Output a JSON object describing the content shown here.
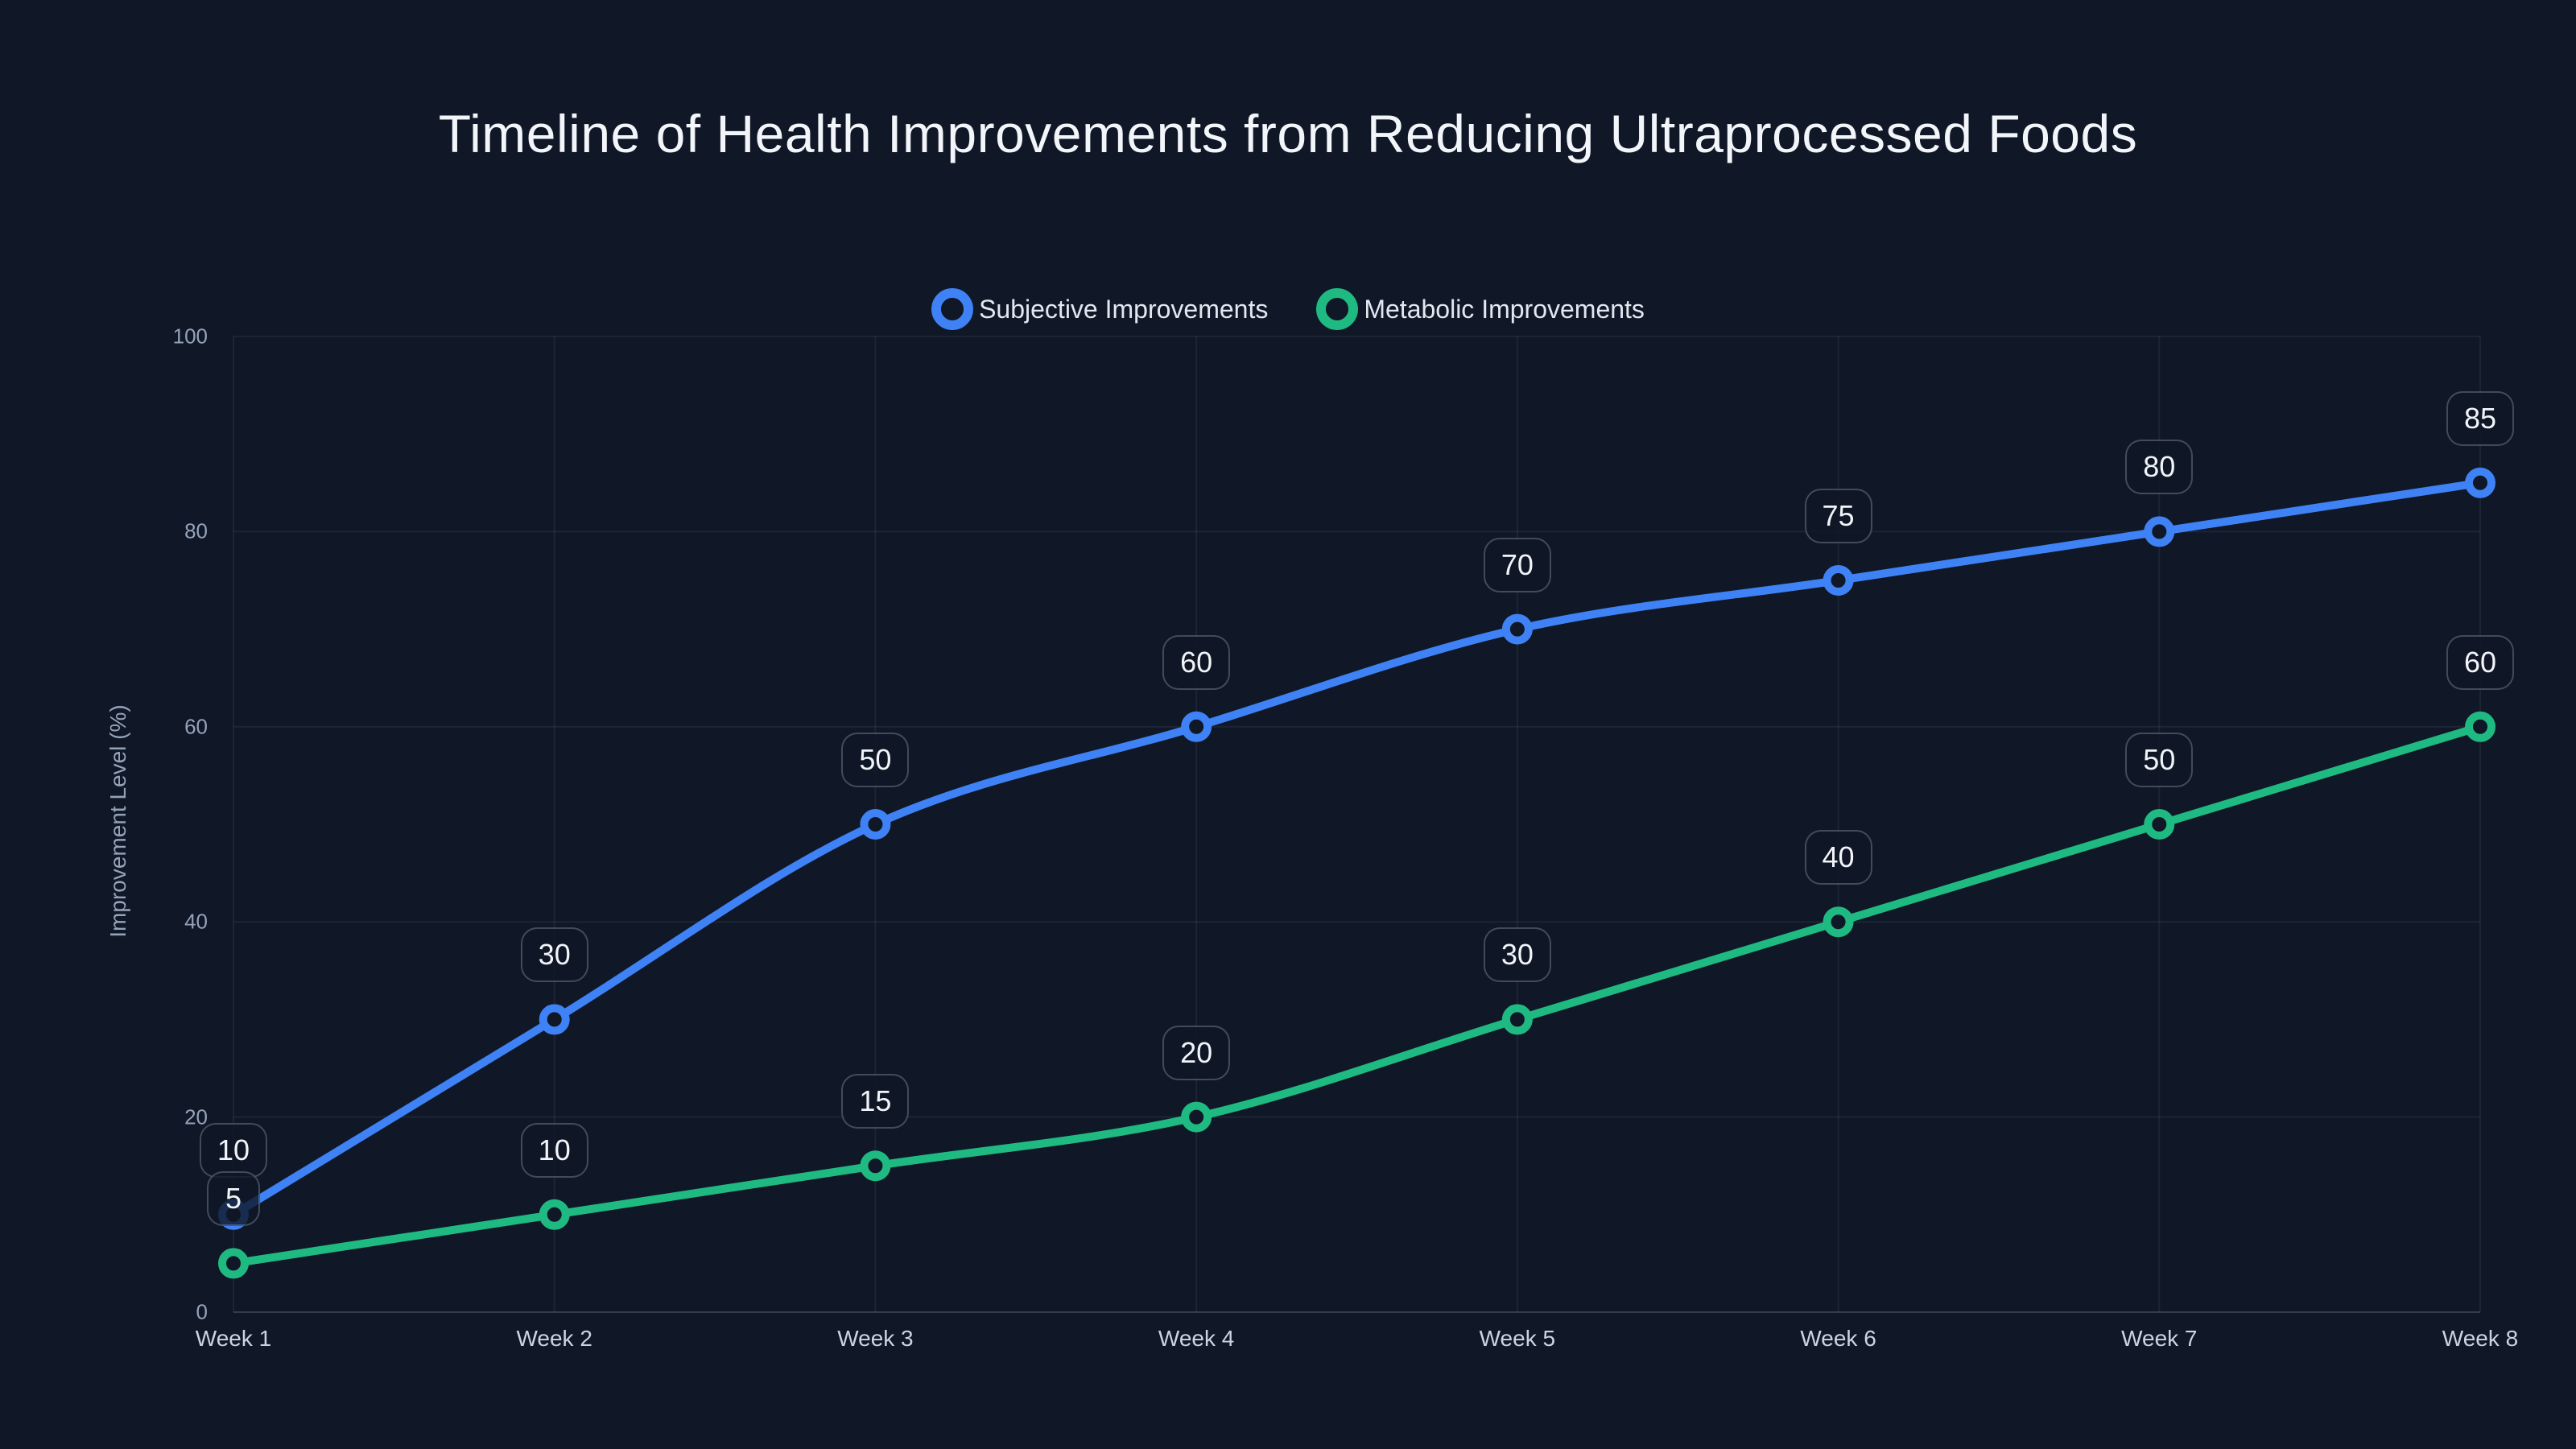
{
  "chart": {
    "title": "Timeline of Health Improvements from Reducing Ultraprocessed Foods"
  },
  "chart_data": {
    "type": "line",
    "title": "Timeline of Health Improvements from Reducing Ultraprocessed Foods",
    "xlabel": "",
    "ylabel": "Improvement Level (%)",
    "categories": [
      "Week 1",
      "Week 2",
      "Week 3",
      "Week 4",
      "Week 5",
      "Week 6",
      "Week 7",
      "Week 8"
    ],
    "series": [
      {
        "name": "Subjective Improvements",
        "color": "#3e82f5",
        "values": [
          10,
          30,
          50,
          60,
          70,
          75,
          80,
          85
        ]
      },
      {
        "name": "Metabolic Improvements",
        "color": "#1eba82",
        "values": [
          5,
          10,
          15,
          20,
          30,
          40,
          50,
          60
        ]
      }
    ],
    "ylim": [
      0,
      100
    ],
    "yticks": [
      0,
      20,
      40,
      60,
      80,
      100
    ],
    "grid": true,
    "legend_position": "top",
    "point_labels": true,
    "curve": "monotone"
  },
  "colors": {
    "background": "#101726",
    "grid": "rgba(148,163,184,0.10)",
    "axis_line": "rgba(148,163,184,0.28)",
    "tick_text": "#94a3b8",
    "x_tick_text": "#cbd5e1",
    "title_text": "#f2f5f9",
    "badge_bg": "rgba(15,22,37,0.8)",
    "badge_border": "rgba(148,163,184,0.38)",
    "badge_text": "#f1f5f9"
  }
}
